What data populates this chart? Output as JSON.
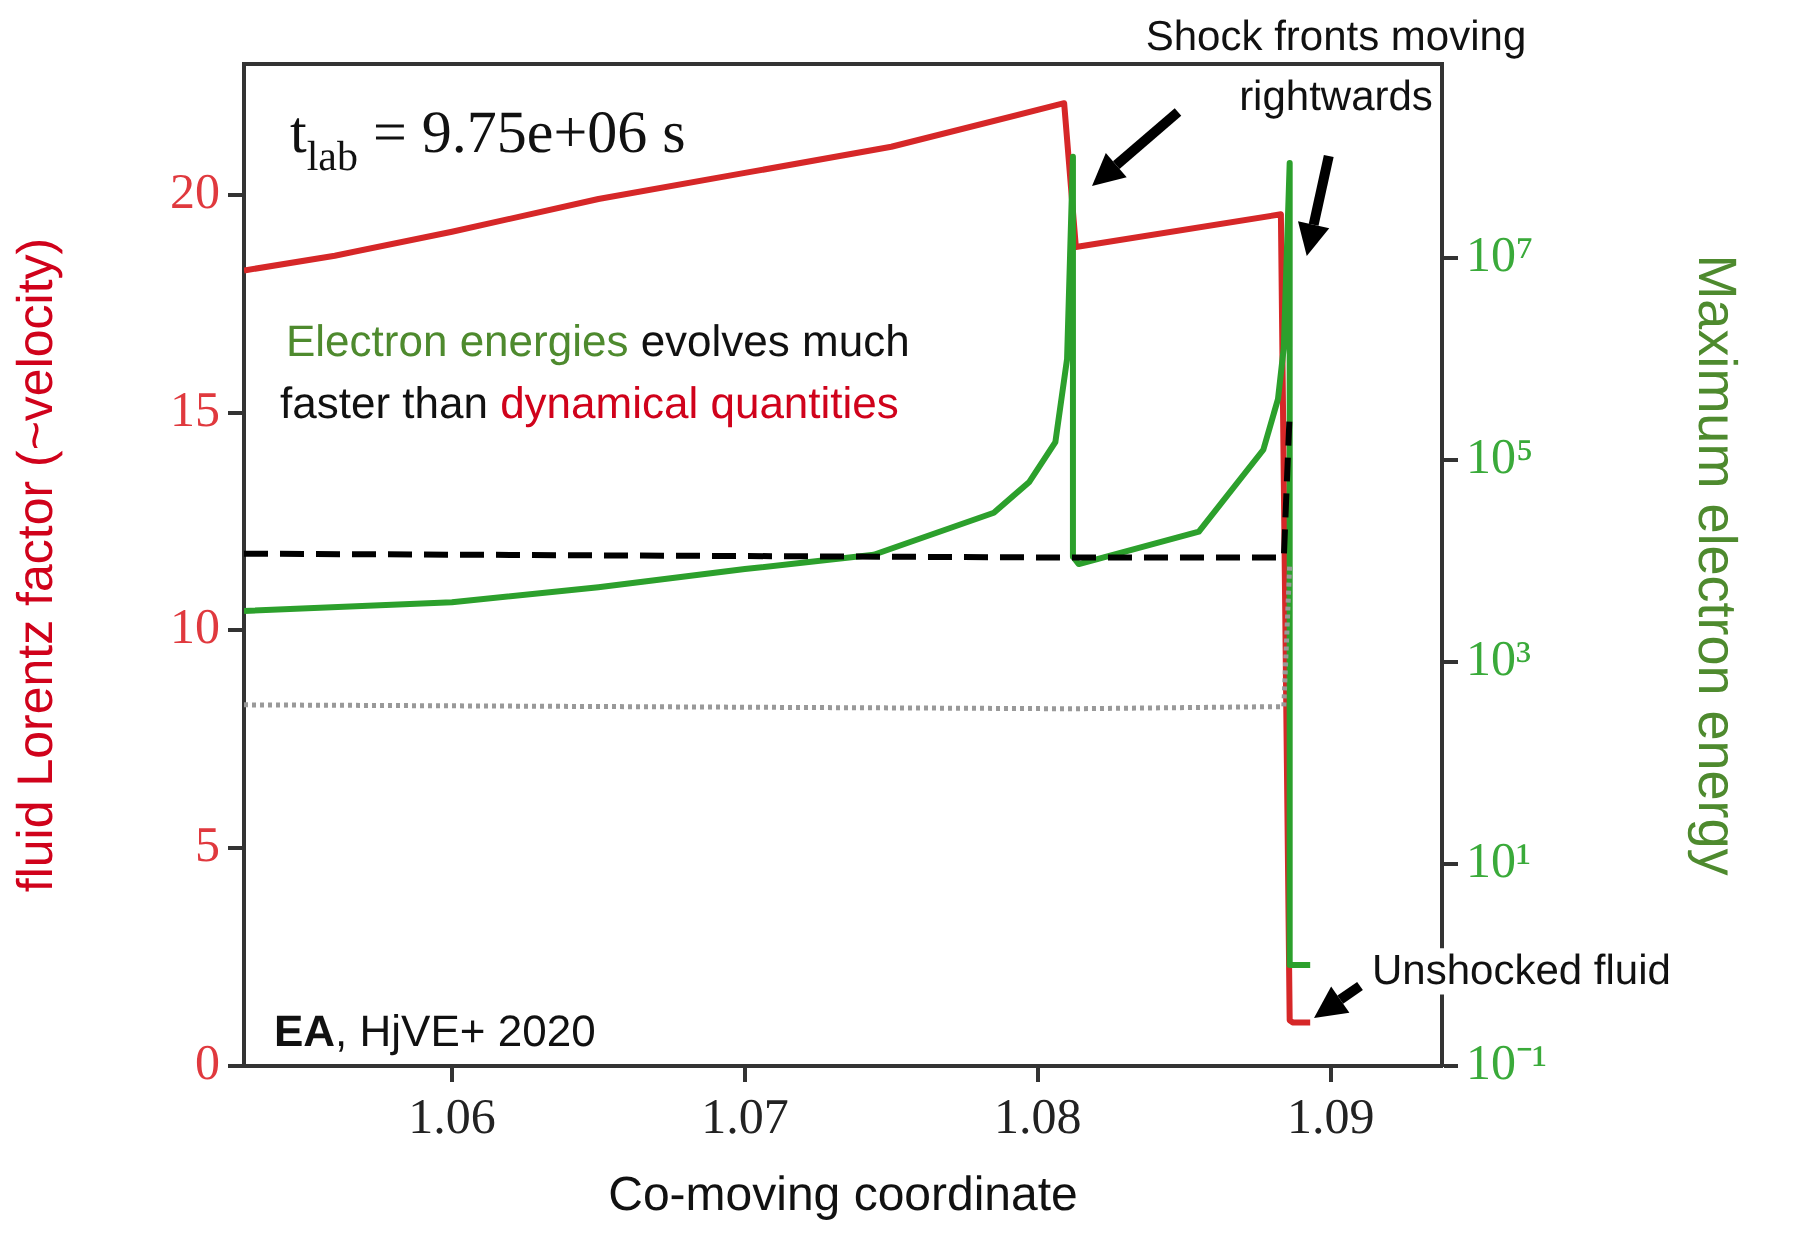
{
  "chart_data": {
    "type": "line",
    "xlabel": "Co-moving coordinate",
    "ylabel": "fluid Lorentz factor (~velocity)",
    "y2label": "Maximum electron energy",
    "xlim": [
      1.0529,
      1.0938
    ],
    "xticks": [
      1.06,
      1.07,
      1.08,
      1.09
    ],
    "ylim": [
      0,
      23
    ],
    "yticks": [
      0,
      5,
      10,
      15,
      20
    ],
    "y2lim": [
      0.1,
      830000000
    ],
    "y2ticks": [
      {
        "value": 0.1,
        "label": "10⁻¹"
      },
      {
        "value": 10,
        "label": "10¹"
      },
      {
        "value": 1000,
        "label": "10³"
      },
      {
        "value": 100000,
        "label": "10⁵"
      },
      {
        "value": 10000000,
        "label": "10⁷"
      }
    ],
    "log": "y2",
    "grid": false,
    "legend": false,
    "marker": "none",
    "series": [
      {
        "color": "#d62728",
        "x": [
          1.0529,
          1.056,
          1.06,
          1.065,
          1.07,
          1.075,
          1.0809,
          1.0813,
          1.0883,
          1.0886,
          1.0887,
          1.0893
        ],
        "values": [
          18.26,
          18.6,
          19.15,
          19.9,
          20.5,
          21.1,
          22.1,
          18.8,
          19.55,
          1.05,
          1.0,
          1.0
        ]
      },
      {
        "color": "#2ca02c",
        "axis": "y2",
        "x": [
          1.0529,
          1.06,
          1.065,
          1.07,
          1.0744,
          1.0785,
          1.0797,
          1.0806,
          1.081,
          1.0812,
          1.0812,
          1.0814,
          1.0855,
          1.0877,
          1.0882,
          1.0884,
          1.0886,
          1.0886,
          1.0893
        ],
        "values": [
          3200,
          3900,
          5500,
          8300,
          11500,
          30000,
          60000,
          150000,
          1000000,
          100000000,
          11000,
          9300,
          19500,
          126000,
          400000,
          1300000,
          87000000,
          1.0,
          1.0
        ]
      },
      {
        "color": "#000000",
        "line_style": "dashed",
        "x": [
          1.0529,
          1.0812,
          1.0884,
          1.0886
        ],
        "values": [
          11.76,
          11.67,
          11.67,
          15.0
        ]
      },
      {
        "color": "#999999",
        "line_style": "dotted",
        "x": [
          1.0529,
          1.0812,
          1.0884,
          1.0886
        ],
        "values": [
          8.29,
          8.2,
          8.25,
          11.5
        ]
      }
    ],
    "annotations": [
      "t$_{lab}$ = 9.75e+06 s",
      "Electron energies",
      " evolves much",
      "faster than ",
      "dynamical quantities",
      "Shock fronts moving",
      "rightwards",
      "Unshocked fluid",
      "EA",
      ", HjVE+ 2020"
    ]
  }
}
